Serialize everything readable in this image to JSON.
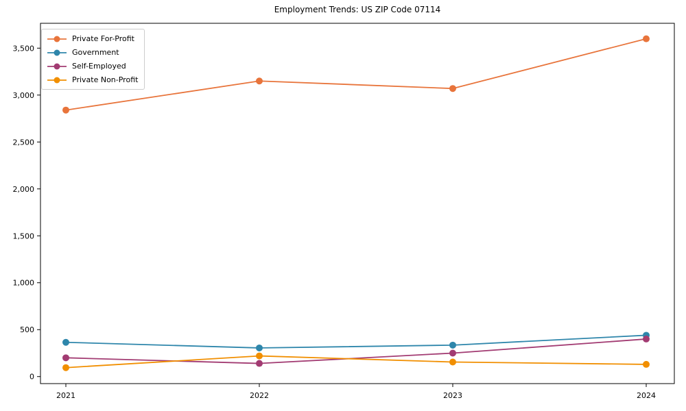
{
  "title": "Employment Trends: US ZIP Code 07114",
  "chart_data": {
    "type": "line",
    "title": "Employment Trends: US ZIP Code 07114",
    "xlabel": "",
    "ylabel": "",
    "categories": [
      "2021",
      "2022",
      "2023",
      "2024"
    ],
    "series": [
      {
        "name": "Private For-Profit",
        "color": "#e8743b",
        "values": [
          2840,
          3150,
          3070,
          3600
        ]
      },
      {
        "name": "Government",
        "color": "#2e86ab",
        "values": [
          365,
          305,
          335,
          440
        ]
      },
      {
        "name": "Self-Employed",
        "color": "#a23b72",
        "values": [
          200,
          140,
          250,
          400
        ]
      },
      {
        "name": "Private Non-Profit",
        "color": "#f18f01",
        "values": [
          95,
          220,
          155,
          130
        ]
      }
    ],
    "ylim": [
      -75,
      3765
    ],
    "y_ticks": [
      {
        "v": 0,
        "label": "0"
      },
      {
        "v": 500,
        "label": "500"
      },
      {
        "v": 1000,
        "label": "1,000"
      },
      {
        "v": 1500,
        "label": "1,500"
      },
      {
        "v": 2000,
        "label": "2,000"
      },
      {
        "v": 2500,
        "label": "2,500"
      },
      {
        "v": 3000,
        "label": "3,000"
      },
      {
        "v": 3500,
        "label": "3,500"
      }
    ],
    "grid": false,
    "legend_position": "upper left",
    "marker": "circle"
  }
}
